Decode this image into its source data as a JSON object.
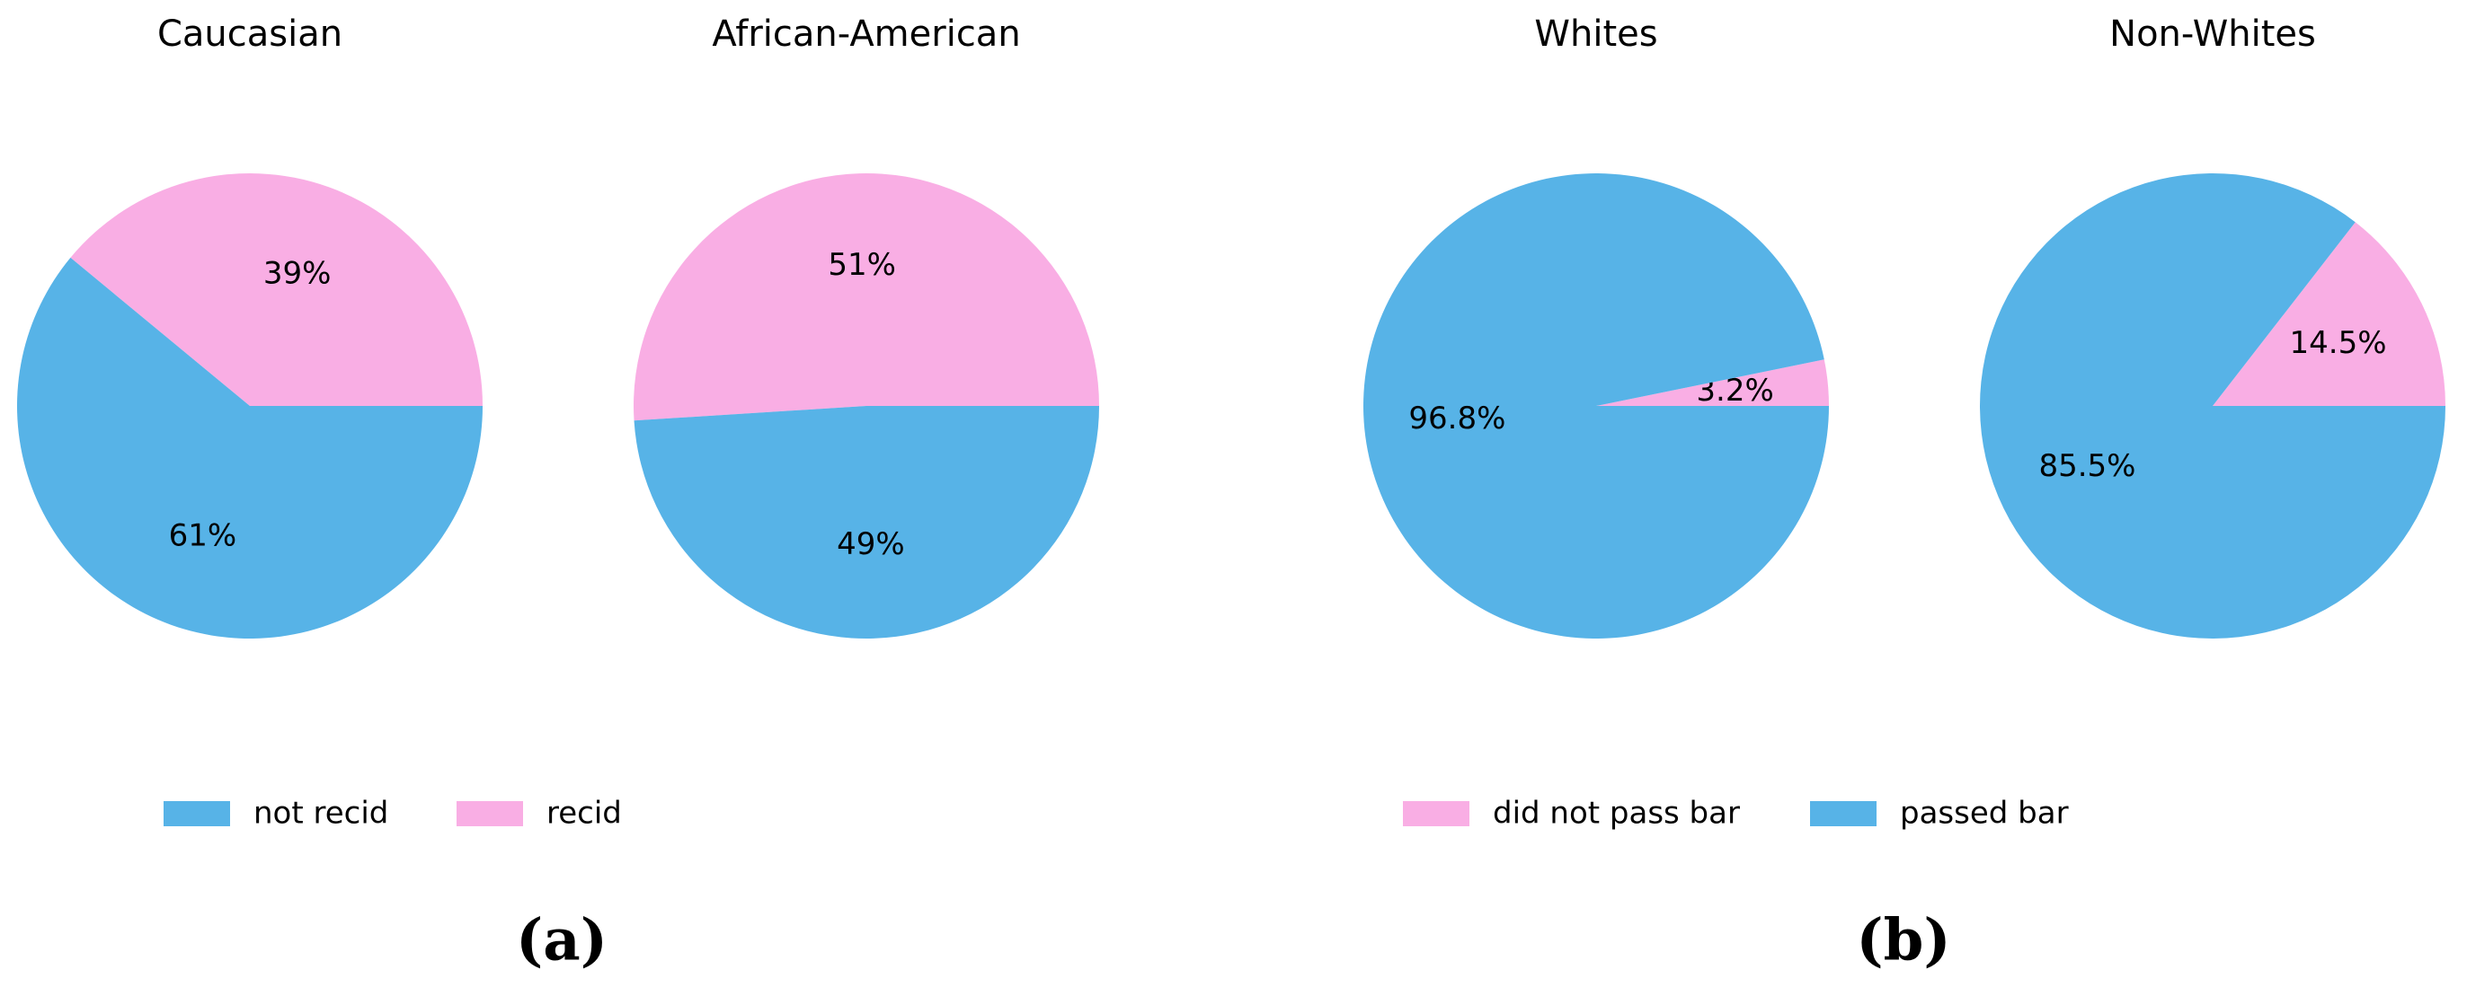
{
  "chart_data": [
    {
      "type": "pie",
      "title": "Caucasian",
      "values": [
        39,
        61
      ],
      "value_labels": [
        "39%",
        "61%"
      ],
      "colors": [
        "#f9aee4",
        "#57b3e7"
      ]
    },
    {
      "type": "pie",
      "title": "African-American",
      "values": [
        51,
        49
      ],
      "value_labels": [
        "51%",
        "49%"
      ],
      "colors": [
        "#f9aee4",
        "#57b3e7"
      ]
    },
    {
      "type": "pie",
      "title": "Whites",
      "values": [
        3.2,
        96.8
      ],
      "value_labels": [
        "3.2%",
        "96.8%"
      ],
      "colors": [
        "#f9aee4",
        "#57b3e7"
      ]
    },
    {
      "type": "pie",
      "title": "Non-Whites",
      "values": [
        14.5,
        85.5
      ],
      "value_labels": [
        "14.5%",
        "85.5%"
      ],
      "colors": [
        "#f9aee4",
        "#57b3e7"
      ]
    }
  ],
  "panels": [
    {
      "label": "(a)",
      "legend": [
        {
          "name": "not recid",
          "color": "#57b3e7"
        },
        {
          "name": "recid",
          "color": "#f9aee4"
        }
      ]
    },
    {
      "label": "(b)",
      "legend": [
        {
          "name": "did not pass bar",
          "color": "#f9aee4"
        },
        {
          "name": "passed bar",
          "color": "#57b3e7"
        }
      ]
    }
  ]
}
